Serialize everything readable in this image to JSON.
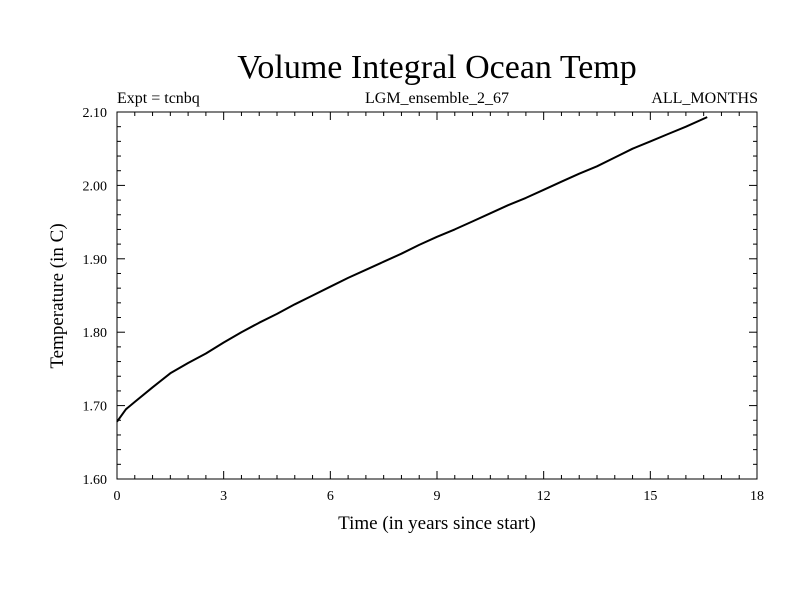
{
  "chart_data": {
    "type": "line",
    "title": "Volume Integral Ocean Temp",
    "subtitle_left": "Expt = tcnbq",
    "subtitle_center": "LGM_ensemble_2_67",
    "subtitle_right": "ALL_MONTHS",
    "xlabel": "Time (in years since start)",
    "ylabel": "Temperature (in C)",
    "xlim": [
      0,
      18
    ],
    "ylim": [
      1.6,
      2.1
    ],
    "x_ticks": [
      0,
      3,
      6,
      9,
      12,
      15,
      18
    ],
    "x_tick_labels": [
      "0",
      "3",
      "6",
      "9",
      "12",
      "15",
      "18"
    ],
    "y_ticks": [
      1.6,
      1.7,
      1.8,
      1.9,
      2.0,
      2.1
    ],
    "y_tick_labels": [
      "1.60",
      "1.70",
      "1.80",
      "1.90",
      "2.00",
      "2.10"
    ],
    "x_minor_step": 0.5,
    "y_minor_step": 0.02,
    "grid": false,
    "series": [
      {
        "name": "Volume Integral Ocean Temp",
        "color": "#000000",
        "x": [
          0,
          0.25,
          0.5,
          1,
          1.5,
          2,
          2.5,
          3,
          3.5,
          4,
          4.5,
          5,
          5.5,
          6,
          6.5,
          7,
          7.5,
          8,
          8.5,
          9,
          9.5,
          10,
          10.5,
          11,
          11.5,
          12,
          12.5,
          13,
          13.5,
          14,
          14.5,
          15,
          15.5,
          16,
          16.6
        ],
        "values": [
          1.678,
          1.695,
          1.705,
          1.725,
          1.744,
          1.758,
          1.771,
          1.786,
          1.8,
          1.813,
          1.825,
          1.838,
          1.85,
          1.862,
          1.874,
          1.885,
          1.896,
          1.907,
          1.919,
          1.93,
          1.94,
          1.951,
          1.962,
          1.973,
          1.983,
          1.994,
          2.005,
          2.016,
          2.026,
          2.038,
          2.05,
          2.06,
          2.07,
          2.08,
          2.093
        ]
      }
    ]
  }
}
